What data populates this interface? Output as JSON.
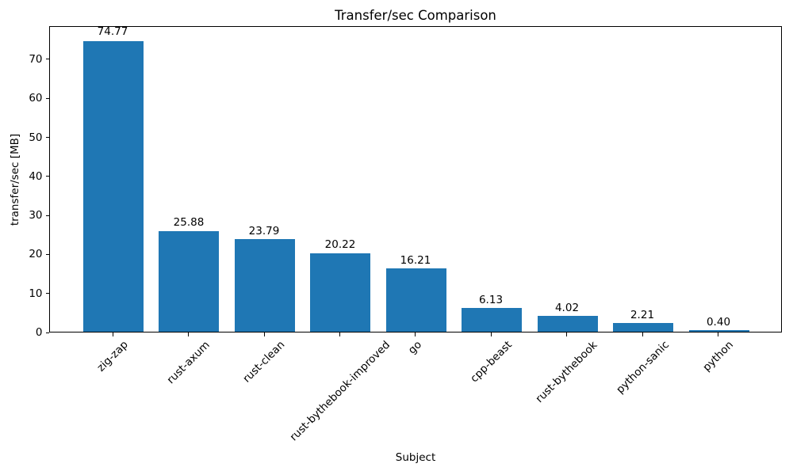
{
  "chart_data": {
    "type": "bar",
    "title": "Transfer/sec Comparison",
    "xlabel": "Subject",
    "ylabel": "transfer/sec [MB]",
    "categories": [
      "zig-zap",
      "rust-axum",
      "rust-clean",
      "rust-bythebook-improved",
      "go",
      "cpp-beast",
      "rust-bythebook",
      "python-sanic",
      "python"
    ],
    "values": [
      74.77,
      25.88,
      23.79,
      20.22,
      16.21,
      6.13,
      4.02,
      2.21,
      0.4
    ],
    "bar_labels": [
      "74.77",
      "25.88",
      "23.79",
      "20.22",
      "16.21",
      "6.13",
      "4.02",
      "2.21",
      "0.40"
    ],
    "yticks": [
      0,
      10,
      20,
      30,
      40,
      50,
      60,
      70
    ],
    "ylim": [
      0,
      78.5
    ],
    "bar_width_fraction": 0.8,
    "x_margin_fraction": 0.05,
    "xtick_rotation_deg": 45,
    "grid": false,
    "legend": null,
    "bar_color": "#1f77b4",
    "axis_color": "#000000",
    "text_color": "#000000",
    "background_color": "#ffffff"
  }
}
